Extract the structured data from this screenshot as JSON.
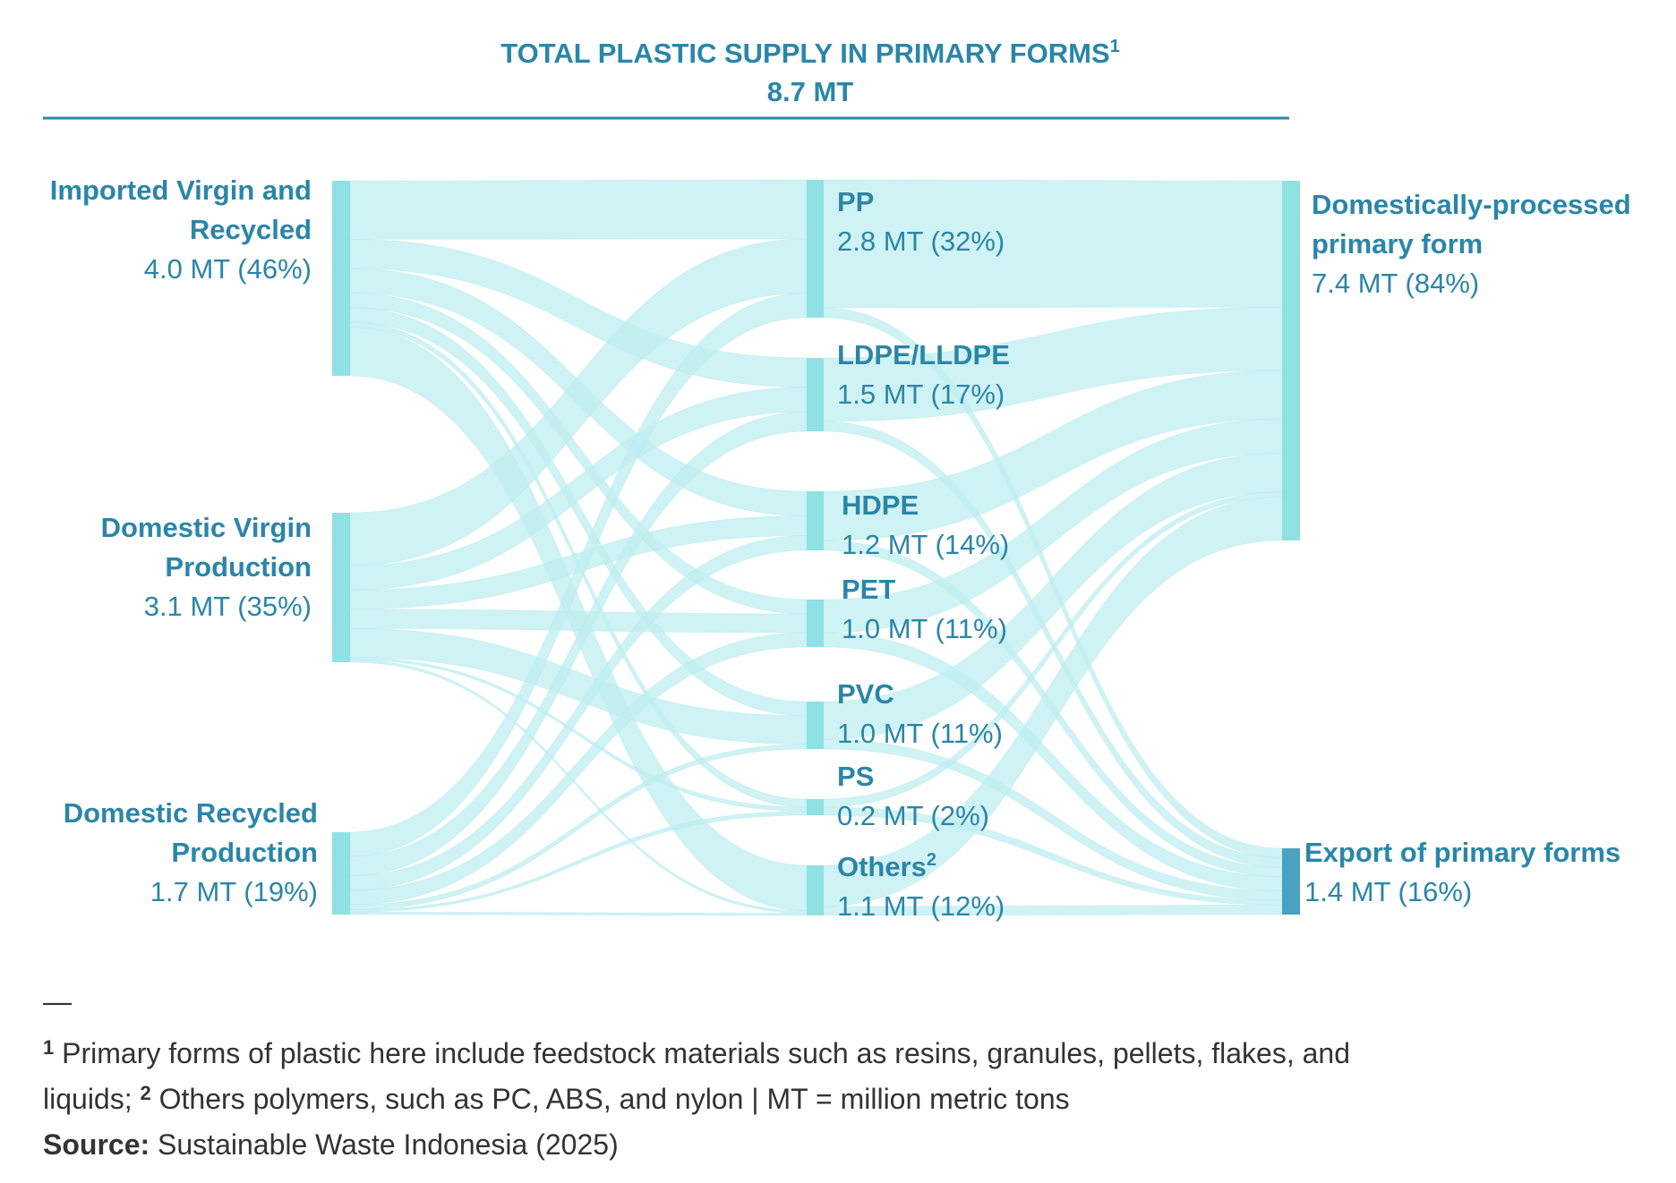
{
  "colors": {
    "title": "#2a86a8",
    "rule": "#2a86a8",
    "node": "#8fe1e3",
    "export_node": "#4aa3c0",
    "link": "#bfeef0",
    "link_stroke": "#a8e8ea",
    "text": "#333333"
  },
  "title": {
    "line1": "TOTAL PLASTIC SUPPLY IN PRIMARY FORMS",
    "sup": "1",
    "line2": "8.7 MT"
  },
  "nodes": {
    "sources": [
      {
        "id": "imported",
        "name_lines": [
          "Imported Virgin and",
          "Recycled"
        ],
        "value": "4.0 MT (46%)",
        "amount": 4.0
      },
      {
        "id": "domestic_virgin",
        "name_lines": [
          "Domestic Virgin",
          "Production"
        ],
        "value": "3.1 MT (35%)",
        "amount": 3.1
      },
      {
        "id": "domestic_recycled",
        "name_lines": [
          "Domestic Recycled",
          "Production"
        ],
        "value": "1.7 MT (19%)",
        "amount": 1.7
      }
    ],
    "polymers": [
      {
        "id": "pp",
        "name": "PP",
        "value": "2.8 MT (32%)",
        "amount": 2.8
      },
      {
        "id": "ldpe",
        "name": "LDPE/LLDPE",
        "value": "1.5 MT (17%)",
        "amount": 1.5
      },
      {
        "id": "hdpe",
        "name": "HDPE",
        "value": "1.2 MT (14%)",
        "amount": 1.2
      },
      {
        "id": "pet",
        "name": "PET",
        "value": "1.0 MT (11%)",
        "amount": 1.0
      },
      {
        "id": "pvc",
        "name": "PVC",
        "value": "1.0 MT (11%)",
        "amount": 1.0
      },
      {
        "id": "ps",
        "name": "PS",
        "value": "0.2 MT (2%)",
        "amount": 0.2
      },
      {
        "id": "others",
        "name": "Others",
        "sup": "2",
        "value": "1.1 MT (12%)",
        "amount": 1.1
      }
    ],
    "destinations": [
      {
        "id": "domestic_processed",
        "name_lines": [
          "Domestically-processed",
          "primary form"
        ],
        "value": "7.4 MT (84%)",
        "amount": 7.4
      },
      {
        "id": "export",
        "name_lines": [
          "Export of primary forms"
        ],
        "value": "1.4 MT (16%)",
        "amount": 1.4
      }
    ]
  },
  "links_left": [
    {
      "source": "imported",
      "target": "pp",
      "value": 1.2
    },
    {
      "source": "imported",
      "target": "ldpe",
      "value": 0.6
    },
    {
      "source": "imported",
      "target": "hdpe",
      "value": 0.5
    },
    {
      "source": "imported",
      "target": "pet",
      "value": 0.3
    },
    {
      "source": "imported",
      "target": "pvc",
      "value": 0.3
    },
    {
      "source": "imported",
      "target": "ps",
      "value": 0.1
    },
    {
      "source": "imported",
      "target": "others",
      "value": 1.0
    },
    {
      "source": "domestic_virgin",
      "target": "pp",
      "value": 1.1
    },
    {
      "source": "domestic_virgin",
      "target": "ldpe",
      "value": 0.5
    },
    {
      "source": "domestic_virgin",
      "target": "hdpe",
      "value": 0.4
    },
    {
      "source": "domestic_virgin",
      "target": "pet",
      "value": 0.4
    },
    {
      "source": "domestic_virgin",
      "target": "pvc",
      "value": 0.6
    },
    {
      "source": "domestic_virgin",
      "target": "ps",
      "value": 0.05
    },
    {
      "source": "domestic_virgin",
      "target": "others",
      "value": 0.05
    },
    {
      "source": "domestic_recycled",
      "target": "pp",
      "value": 0.5
    },
    {
      "source": "domestic_recycled",
      "target": "ldpe",
      "value": 0.4
    },
    {
      "source": "domestic_recycled",
      "target": "hdpe",
      "value": 0.3
    },
    {
      "source": "domestic_recycled",
      "target": "pet",
      "value": 0.3
    },
    {
      "source": "domestic_recycled",
      "target": "pvc",
      "value": 0.1
    },
    {
      "source": "domestic_recycled",
      "target": "ps",
      "value": 0.05
    },
    {
      "source": "domestic_recycled",
      "target": "others",
      "value": 0.05
    }
  ],
  "links_right": [
    {
      "source": "pp",
      "target": "domestic_processed",
      "value": 2.6
    },
    {
      "source": "pp",
      "target": "export",
      "value": 0.2
    },
    {
      "source": "ldpe",
      "target": "domestic_processed",
      "value": 1.3
    },
    {
      "source": "ldpe",
      "target": "export",
      "value": 0.2
    },
    {
      "source": "hdpe",
      "target": "domestic_processed",
      "value": 1.0
    },
    {
      "source": "hdpe",
      "target": "export",
      "value": 0.2
    },
    {
      "source": "pet",
      "target": "domestic_processed",
      "value": 0.7
    },
    {
      "source": "pet",
      "target": "export",
      "value": 0.3
    },
    {
      "source": "pvc",
      "target": "domestic_processed",
      "value": 0.8
    },
    {
      "source": "pvc",
      "target": "export",
      "value": 0.2
    },
    {
      "source": "ps",
      "target": "domestic_processed",
      "value": 0.1
    },
    {
      "source": "ps",
      "target": "export",
      "value": 0.1
    },
    {
      "source": "others",
      "target": "domestic_processed",
      "value": 0.9
    },
    {
      "source": "others",
      "target": "export",
      "value": 0.2
    }
  ],
  "footer": {
    "dash": "—",
    "note1_sup": "1",
    "note1_text": " Primary forms of plastic here include feedstock materials such as resins, granules, pellets, flakes, and",
    "note1_text2": "liquids; ",
    "note2_sup": "2",
    "note2_text": " Others polymers, such as PC, ABS, and nylon | MT = million metric tons",
    "source_label": "Source:",
    "source_text": " Sustainable Waste Indonesia (2025)"
  }
}
